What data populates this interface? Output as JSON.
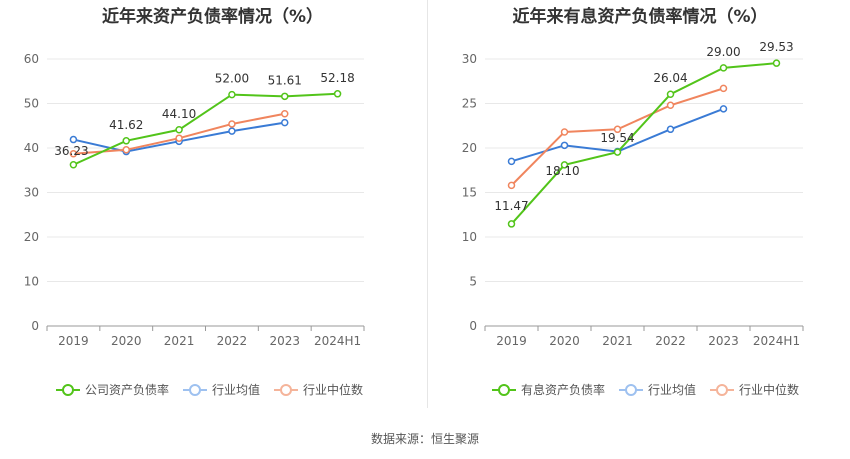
{
  "chart_data": [
    {
      "type": "line",
      "title": "近年来资产负债率情况（%）",
      "categories": [
        "2019",
        "2020",
        "2021",
        "2022",
        "2023",
        "2024H1"
      ],
      "ylim": [
        0,
        60
      ],
      "yticks": [
        "0",
        "10",
        "20",
        "30",
        "40",
        "50",
        "60"
      ],
      "grid": true,
      "legend_position": "bottom",
      "series": [
        {
          "name": "公司资产负债率",
          "color": "#52c41a",
          "values": [
            36.23,
            41.62,
            44.1,
            52.0,
            51.61,
            52.18
          ],
          "labels": [
            "36.23",
            "41.62",
            "44.10",
            "52.00",
            "51.61",
            "52.18"
          ]
        },
        {
          "name": "行业均值",
          "color": "#3a7bd5",
          "values": [
            41.9,
            39.2,
            41.5,
            43.8,
            45.7,
            null
          ]
        },
        {
          "name": "行业中位数",
          "color": "#f0855e",
          "values": [
            38.7,
            39.6,
            42.2,
            45.4,
            47.7,
            null
          ]
        }
      ]
    },
    {
      "type": "line",
      "title": "近年来有息资产负债率情况（%）",
      "categories": [
        "2019",
        "2020",
        "2021",
        "2022",
        "2023",
        "2024H1"
      ],
      "ylim": [
        0,
        30
      ],
      "yticks": [
        "0",
        "5",
        "10",
        "15",
        "20",
        "25",
        "30"
      ],
      "grid": true,
      "legend_position": "bottom",
      "series": [
        {
          "name": "有息资产负债率",
          "color": "#52c41a",
          "values": [
            11.47,
            18.1,
            19.54,
            26.04,
            29.0,
            29.53
          ],
          "labels": [
            "11.47",
            "18.10",
            "19.54",
            "26.04",
            "29.00",
            "29.53"
          ]
        },
        {
          "name": "行业均值",
          "color": "#3a7bd5",
          "values": [
            18.5,
            20.3,
            19.6,
            22.1,
            24.4,
            null
          ]
        },
        {
          "name": "行业中位数",
          "color": "#f0855e",
          "values": [
            15.8,
            21.8,
            22.1,
            24.8,
            26.7,
            null
          ]
        }
      ]
    }
  ],
  "source": "数据来源：恒生聚源"
}
